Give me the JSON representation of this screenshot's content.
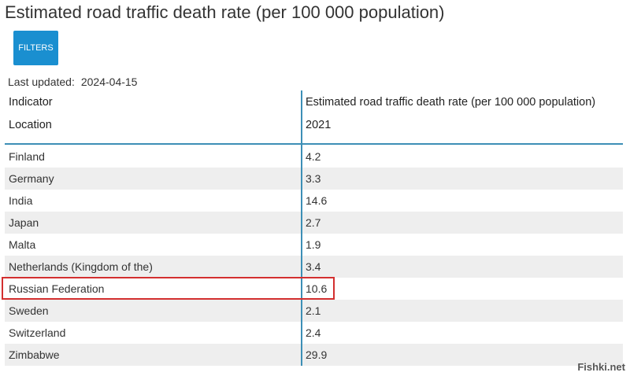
{
  "title": "Estimated road traffic death rate (per 100 000 population)",
  "filters_label": "FILTERS",
  "last_updated": {
    "label": "Last updated:",
    "date": "2024-04-15"
  },
  "table": {
    "indicator_label": "Indicator",
    "location_label": "Location",
    "indicator_value": "Estimated road traffic death rate (per 100 000 population)",
    "year": "2021",
    "rows": [
      {
        "location": "Finland",
        "value": "4.2"
      },
      {
        "location": "Germany",
        "value": "3.3"
      },
      {
        "location": "India",
        "value": "14.6"
      },
      {
        "location": "Japan",
        "value": "2.7"
      },
      {
        "location": "Malta",
        "value": "1.9"
      },
      {
        "location": "Netherlands (Kingdom of the)",
        "value": "3.4"
      },
      {
        "location": "Russian Federation",
        "value": "10.6"
      },
      {
        "location": "Sweden",
        "value": "2.1"
      },
      {
        "location": "Switzerland",
        "value": "2.4"
      },
      {
        "location": "Zimbabwe",
        "value": "29.9"
      }
    ],
    "highlighted_location": "Russian Federation"
  },
  "colors": {
    "accent": "#1a8fd0",
    "table_lines": "#3d8fb6",
    "highlight": "#d32f2f",
    "row_alt": "#eeeeee"
  },
  "watermark": "Fishki.net"
}
